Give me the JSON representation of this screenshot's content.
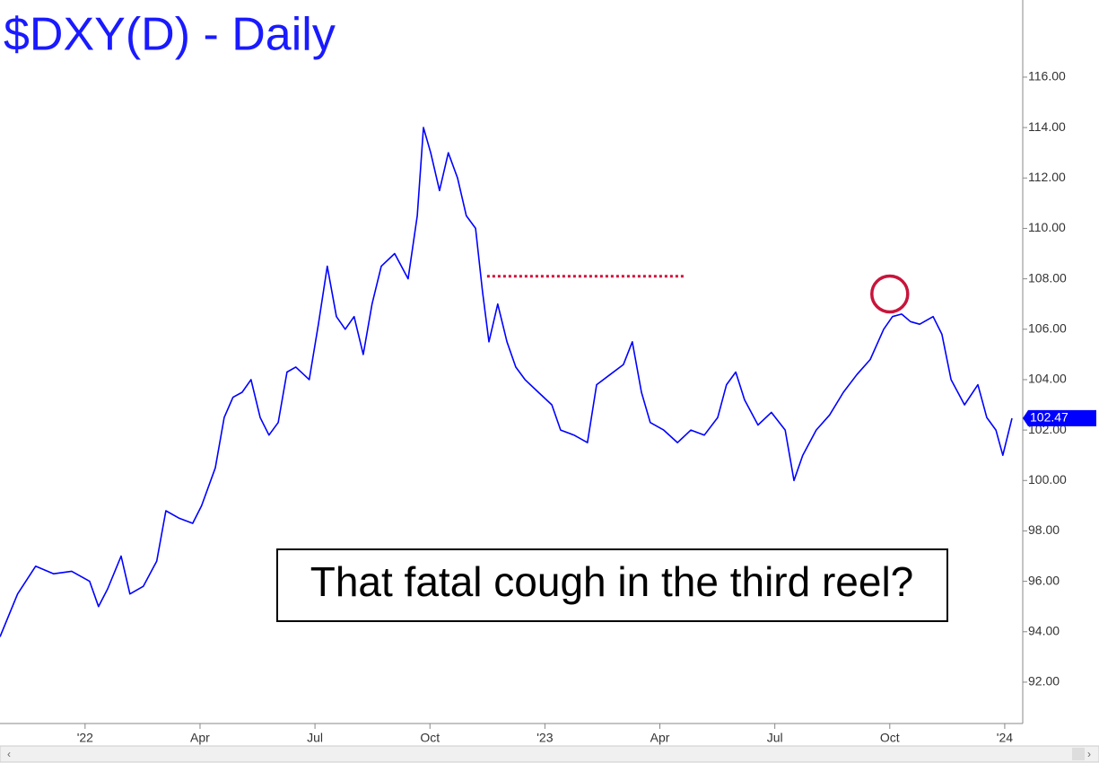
{
  "chart_data": {
    "type": "line",
    "title": "$DXY(D) - Daily",
    "annotation": "That fatal cough in the third reel?",
    "x": [
      -2.22,
      -1.76,
      -1.29,
      -0.82,
      -0.35,
      0.12,
      0.35,
      0.59,
      0.94,
      1.17,
      1.52,
      1.87,
      2.11,
      2.46,
      2.81,
      3.04,
      3.4,
      3.63,
      3.86,
      4.1,
      4.33,
      4.57,
      4.8,
      5.04,
      5.27,
      5.5,
      5.85,
      6.09,
      6.32,
      6.56,
      6.79,
      7.02,
      7.26,
      7.49,
      7.73,
      8.08,
      8.43,
      8.67,
      8.83,
      9.02,
      9.25,
      9.48,
      9.72,
      9.95,
      10.19,
      10.37,
      10.54,
      10.77,
      11.01,
      11.24,
      11.48,
      11.83,
      12.18,
      12.41,
      12.76,
      13.11,
      13.35,
      13.7,
      14.05,
      14.28,
      14.52,
      14.75,
      15.1,
      15.46,
      15.81,
      16.16,
      16.51,
      16.74,
      16.98,
      17.21,
      17.56,
      17.91,
      18.27,
      18.5,
      18.73,
      19.08,
      19.43,
      19.79,
      20.14,
      20.49,
      20.84,
      21.07,
      21.31,
      21.54,
      21.78,
      22.13,
      22.36,
      22.6,
      22.95,
      23.3,
      23.53,
      23.77,
      23.95,
      24.19
    ],
    "series": [
      {
        "color": "#0000ff",
        "values": [
          93.8,
          95.5,
          96.6,
          96.3,
          96.4,
          96.0,
          95.0,
          95.7,
          97.0,
          95.5,
          95.8,
          96.8,
          98.8,
          98.5,
          98.3,
          99.0,
          100.5,
          102.5,
          103.3,
          103.5,
          104.0,
          102.5,
          101.8,
          102.3,
          104.3,
          104.5,
          104.0,
          106.2,
          108.5,
          106.5,
          106.0,
          106.5,
          105.0,
          107.0,
          108.5,
          109.0,
          108.0,
          110.5,
          114.0,
          113.0,
          111.5,
          113.0,
          112.0,
          110.5,
          110.0,
          107.5,
          105.5,
          107.0,
          105.5,
          104.5,
          104.0,
          103.5,
          103.0,
          102.0,
          101.8,
          101.5,
          103.8,
          104.2,
          104.6,
          105.5,
          103.5,
          102.3,
          102.0,
          101.5,
          102.0,
          101.8,
          102.5,
          103.8,
          104.3,
          103.2,
          102.2,
          102.7,
          102.0,
          100.0,
          101.0,
          102.0,
          102.6,
          103.5,
          104.2,
          104.8,
          106.0,
          106.5,
          106.6,
          106.3,
          106.2,
          106.5,
          105.8,
          104.0,
          103.0,
          103.8,
          102.5,
          102.0,
          101.0,
          102.47
        ]
      }
    ],
    "xlim": [
      -2.22,
      24.47
    ],
    "xticks": [
      {
        "value": 0,
        "label": "'22"
      },
      {
        "value": 3,
        "label": "Apr"
      },
      {
        "value": 6,
        "label": "Jul"
      },
      {
        "value": 9,
        "label": "Oct"
      },
      {
        "value": 12,
        "label": "'23"
      },
      {
        "value": 15,
        "label": "Apr"
      },
      {
        "value": 18,
        "label": "Jul"
      },
      {
        "value": 21,
        "label": "Oct"
      },
      {
        "value": 24,
        "label": "'24"
      }
    ],
    "ylim": [
      90.36,
      119.06
    ],
    "yticks": [
      {
        "value": 92,
        "label": "92.00"
      },
      {
        "value": 94,
        "label": "94.00"
      },
      {
        "value": 96,
        "label": "96.00"
      },
      {
        "value": 98,
        "label": "98.00"
      },
      {
        "value": 100,
        "label": "100.00"
      },
      {
        "value": 102,
        "label": "102.00"
      },
      {
        "value": 104,
        "label": "104.00"
      },
      {
        "value": 106,
        "label": "106.00"
      },
      {
        "value": 108,
        "label": "108.00"
      },
      {
        "value": 110,
        "label": "110.00"
      },
      {
        "value": 112,
        "label": "112.00"
      },
      {
        "value": 114,
        "label": "114.00"
      },
      {
        "value": 116,
        "label": "116.00"
      }
    ],
    "hline": {
      "y": 108.1,
      "x": [
        10.49,
        15.62
      ],
      "color": "#d0103a"
    },
    "circle": {
      "x": 21.0,
      "y": 107.4,
      "color": "#c8143c"
    }
  }
}
